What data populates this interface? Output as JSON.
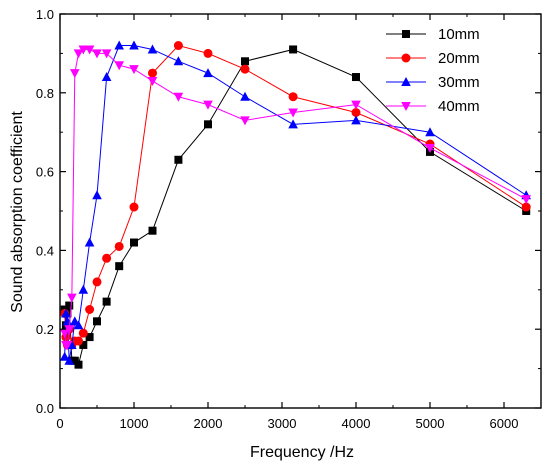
{
  "chart_data": {
    "type": "line",
    "xlabel": "Frequency /Hz",
    "ylabel": "Sound absorption coefficient",
    "xlim": [
      0,
      6500
    ],
    "ylim": [
      0,
      1.0
    ],
    "x_ticks": [
      0,
      1000,
      2000,
      3000,
      4000,
      5000,
      6000
    ],
    "y_ticks": [
      0.0,
      0.2,
      0.4,
      0.6,
      0.8,
      1.0
    ],
    "x_tick_labels": [
      "0",
      "1000",
      "2000",
      "3000",
      "4000",
      "5000",
      "6000"
    ],
    "y_tick_labels": [
      "0.0",
      "0.2",
      "0.4",
      "0.6",
      "0.8",
      "1.0"
    ],
    "legend_position": "top-right",
    "grid": false,
    "series": [
      {
        "name": "10mm",
        "color": "#000000",
        "marker": "square",
        "x": [
          63,
          80,
          100,
          125,
          160,
          200,
          250,
          315,
          400,
          500,
          630,
          800,
          1000,
          1250,
          1600,
          2000,
          2500,
          3150,
          4000,
          5000,
          6300
        ],
        "y": [
          0.25,
          0.21,
          0.24,
          0.26,
          0.12,
          0.12,
          0.11,
          0.16,
          0.18,
          0.22,
          0.27,
          0.36,
          0.42,
          0.45,
          0.63,
          0.72,
          0.88,
          0.91,
          0.84,
          0.65,
          0.5
        ]
      },
      {
        "name": "20mm",
        "color": "#ff0000",
        "marker": "circle",
        "x": [
          63,
          80,
          100,
          125,
          160,
          200,
          250,
          315,
          400,
          500,
          630,
          800,
          1000,
          1250,
          1600,
          2000,
          2500,
          3150,
          4000,
          5000,
          6300
        ],
        "y": [
          0.24,
          0.18,
          0.16,
          0.2,
          0.16,
          0.17,
          0.17,
          0.19,
          0.25,
          0.32,
          0.38,
          0.41,
          0.51,
          0.85,
          0.92,
          0.9,
          0.86,
          0.79,
          0.75,
          0.67,
          0.51
        ]
      },
      {
        "name": "30mm",
        "color": "#0000ff",
        "marker": "triangle-up",
        "x": [
          63,
          80,
          100,
          125,
          160,
          200,
          250,
          315,
          400,
          500,
          630,
          800,
          1000,
          1250,
          1600,
          2000,
          2500,
          3150,
          4000,
          5000,
          6300
        ],
        "y": [
          0.13,
          0.24,
          0.22,
          0.12,
          0.16,
          0.22,
          0.21,
          0.3,
          0.42,
          0.54,
          0.84,
          0.92,
          0.92,
          0.91,
          0.88,
          0.85,
          0.79,
          0.72,
          0.73,
          0.7,
          0.54
        ]
      },
      {
        "name": "40mm",
        "color": "#ff00ff",
        "marker": "triangle-down",
        "x": [
          63,
          80,
          100,
          125,
          160,
          200,
          250,
          315,
          400,
          500,
          630,
          800,
          1000,
          1250,
          1600,
          2000,
          2500,
          3150,
          4000,
          5000,
          6300
        ],
        "y": [
          0.19,
          0.16,
          0.16,
          0.2,
          0.28,
          0.85,
          0.9,
          0.91,
          0.91,
          0.9,
          0.9,
          0.87,
          0.86,
          0.83,
          0.79,
          0.77,
          0.73,
          0.75,
          0.77,
          0.66,
          0.53
        ]
      }
    ]
  }
}
